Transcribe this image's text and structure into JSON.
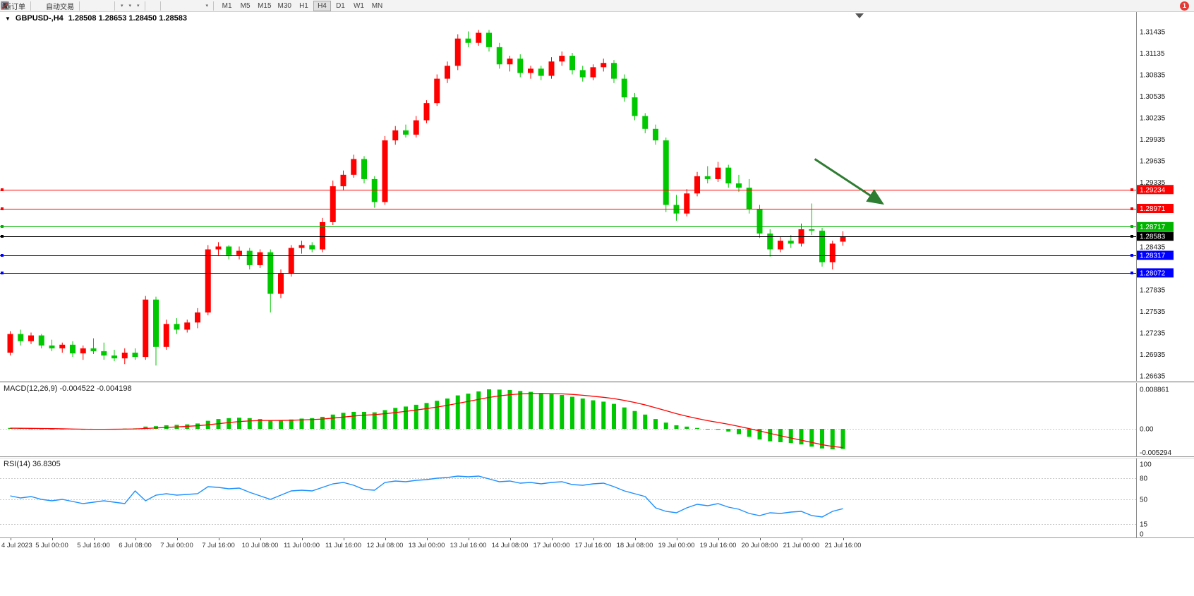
{
  "toolbar": {
    "new_order_label": "新订单",
    "auto_trading_label": "自动交易",
    "text_tool_glyph": "A",
    "label_tool_glyph": "T",
    "timeframes": [
      "M1",
      "M5",
      "M15",
      "M30",
      "H1",
      "H4",
      "D1",
      "W1",
      "MN"
    ],
    "active_timeframe": "H4",
    "notification_badge": "1"
  },
  "chart": {
    "symbol_period": "GBPUSD-,H4",
    "ohlc_display": "1.28508 1.28653 1.28450 1.28583"
  },
  "chart_data": [
    {
      "type": "candlestick",
      "title": "GBPUSD-,H4",
      "open": 1.28508,
      "high": 1.28653,
      "low": 1.2845,
      "close": 1.28583,
      "up_color": "#ff0000",
      "down_color": "#00c800",
      "price_axis": {
        "labels": [
          "1.31435",
          "1.31135",
          "1.30835",
          "1.30535",
          "1.30235",
          "1.29935",
          "1.29635",
          "1.29335",
          "1.29035",
          "1.28735",
          "1.28435",
          "1.28135",
          "1.27835",
          "1.27535",
          "1.27235",
          "1.26935",
          "1.26635"
        ]
      },
      "time_labels": [
        "4 Jul 2023",
        "5 Jul 00:00",
        "5 Jul 16:00",
        "6 Jul 08:00",
        "7 Jul 00:00",
        "7 Jul 16:00",
        "10 Jul 08:00",
        "11 Jul 00:00",
        "11 Jul 16:00",
        "12 Jul 08:00",
        "13 Jul 00:00",
        "13 Jul 16:00",
        "14 Jul 08:00",
        "17 Jul 00:00",
        "17 Jul 16:00",
        "18 Jul 08:00",
        "19 Jul 00:00",
        "19 Jul 16:00",
        "20 Jul 08:00",
        "21 Jul 00:00",
        "21 Jul 16:00"
      ],
      "candles": [
        [
          1.2696,
          1.2726,
          1.2692,
          1.2722
        ],
        [
          1.2722,
          1.2728,
          1.2706,
          1.2712
        ],
        [
          1.2712,
          1.2724,
          1.2708,
          1.272
        ],
        [
          1.272,
          1.2722,
          1.2702,
          1.2706
        ],
        [
          1.2706,
          1.2714,
          1.2698,
          1.2702
        ],
        [
          1.2702,
          1.271,
          1.2696,
          1.2707
        ],
        [
          1.2707,
          1.2712,
          1.269,
          1.2695
        ],
        [
          1.2695,
          1.2706,
          1.2686,
          1.2702
        ],
        [
          1.2702,
          1.2716,
          1.2694,
          1.2698
        ],
        [
          1.2698,
          1.271,
          1.2686,
          1.2692
        ],
        [
          1.2692,
          1.27,
          1.2684,
          1.2688
        ],
        [
          1.2688,
          1.2702,
          1.268,
          1.2696
        ],
        [
          1.2696,
          1.2702,
          1.2686,
          1.269
        ],
        [
          1.269,
          1.2775,
          1.2686,
          1.277
        ],
        [
          1.277,
          1.2774,
          1.2678,
          1.2704
        ],
        [
          1.2704,
          1.2742,
          1.27,
          1.2736
        ],
        [
          1.2736,
          1.2744,
          1.2722,
          1.2728
        ],
        [
          1.2728,
          1.2742,
          1.2724,
          1.2738
        ],
        [
          1.2738,
          1.2758,
          1.273,
          1.2752
        ],
        [
          1.2752,
          1.2846,
          1.2748,
          1.284
        ],
        [
          1.284,
          1.285,
          1.2832,
          1.2844
        ],
        [
          1.2844,
          1.2846,
          1.2826,
          1.2832
        ],
        [
          1.2832,
          1.2844,
          1.2826,
          1.2838
        ],
        [
          1.2838,
          1.2842,
          1.2812,
          1.2818
        ],
        [
          1.2818,
          1.284,
          1.2814,
          1.2836
        ],
        [
          1.2836,
          1.284,
          1.2752,
          1.2778
        ],
        [
          1.2778,
          1.2812,
          1.2772,
          1.2806
        ],
        [
          1.2806,
          1.2846,
          1.2802,
          1.2842
        ],
        [
          1.2842,
          1.2852,
          1.2834,
          1.2846
        ],
        [
          1.2846,
          1.285,
          1.2836,
          1.284
        ],
        [
          1.284,
          1.2884,
          1.2836,
          1.2878
        ],
        [
          1.2878,
          1.2936,
          1.2874,
          1.2928
        ],
        [
          1.2928,
          1.295,
          1.2922,
          1.2944
        ],
        [
          1.2944,
          1.2972,
          1.294,
          1.2966
        ],
        [
          1.2966,
          1.297,
          1.2932,
          1.2938
        ],
        [
          1.2938,
          1.2942,
          1.2898,
          1.2906
        ],
        [
          1.2906,
          1.2998,
          1.2902,
          1.2992
        ],
        [
          1.2992,
          1.3012,
          1.2986,
          1.3006
        ],
        [
          1.3006,
          1.3014,
          1.2996,
          1.3
        ],
        [
          1.3,
          1.3026,
          1.2996,
          1.302
        ],
        [
          1.302,
          1.3048,
          1.3016,
          1.3044
        ],
        [
          1.3044,
          1.3084,
          1.304,
          1.3078
        ],
        [
          1.3078,
          1.3102,
          1.3072,
          1.3096
        ],
        [
          1.3096,
          1.314,
          1.309,
          1.3134
        ],
        [
          1.3134,
          1.3144,
          1.3122,
          1.3128
        ],
        [
          1.3128,
          1.3146,
          1.3124,
          1.3142
        ],
        [
          1.3142,
          1.3146,
          1.3116,
          1.3122
        ],
        [
          1.3122,
          1.3128,
          1.3092,
          1.3098
        ],
        [
          1.3098,
          1.311,
          1.3088,
          1.3106
        ],
        [
          1.3106,
          1.3112,
          1.308,
          1.3086
        ],
        [
          1.3086,
          1.3096,
          1.3078,
          1.3092
        ],
        [
          1.3092,
          1.3096,
          1.3076,
          1.3082
        ],
        [
          1.3082,
          1.3108,
          1.3078,
          1.3102
        ],
        [
          1.3102,
          1.3116,
          1.3096,
          1.311
        ],
        [
          1.311,
          1.3114,
          1.3084,
          1.309
        ],
        [
          1.309,
          1.3096,
          1.3074,
          1.308
        ],
        [
          1.308,
          1.3098,
          1.3076,
          1.3094
        ],
        [
          1.3094,
          1.3106,
          1.3088,
          1.31
        ],
        [
          1.31,
          1.3104,
          1.3072,
          1.3078
        ],
        [
          1.3078,
          1.3084,
          1.3046,
          1.3052
        ],
        [
          1.3052,
          1.3058,
          1.302,
          1.3026
        ],
        [
          1.3026,
          1.303,
          1.3002,
          1.3008
        ],
        [
          1.3008,
          1.3014,
          1.2986,
          1.2992
        ],
        [
          1.2992,
          1.2996,
          1.2892,
          1.2902
        ],
        [
          1.2902,
          1.2916,
          1.288,
          1.289
        ],
        [
          1.289,
          1.2924,
          1.2886,
          1.2918
        ],
        [
          1.2918,
          1.2948,
          1.2914,
          1.2942
        ],
        [
          1.2942,
          1.2956,
          1.2932,
          1.2938
        ],
        [
          1.2938,
          1.2962,
          1.2934,
          1.2954
        ],
        [
          1.2954,
          1.2958,
          1.2926,
          1.2932
        ],
        [
          1.2932,
          1.2944,
          1.292,
          1.2926
        ],
        [
          1.2926,
          1.2938,
          1.289,
          1.2896
        ],
        [
          1.2896,
          1.2902,
          1.2856,
          1.2862
        ],
        [
          1.2862,
          1.2868,
          1.283,
          1.284
        ],
        [
          1.284,
          1.2858,
          1.2836,
          1.2852
        ],
        [
          1.2852,
          1.286,
          1.2842,
          1.2848
        ],
        [
          1.2848,
          1.2876,
          1.2844,
          1.2868
        ],
        [
          1.2868,
          1.2904,
          1.286,
          1.2866
        ],
        [
          1.2866,
          1.287,
          1.2816,
          1.2822
        ],
        [
          1.2822,
          1.2852,
          1.2812,
          1.2848
        ],
        [
          1.28508,
          1.28653,
          1.2845,
          1.28583
        ]
      ],
      "hlines": [
        {
          "label": "1.29234",
          "price": 1.29234,
          "color": "#ff0000",
          "name": "resistance-line-1"
        },
        {
          "label": "1.28971",
          "price": 1.28971,
          "color": "#ff0000",
          "name": "resistance-line-2"
        },
        {
          "label": "1.28717",
          "price": 1.28717,
          "color": "#00b400",
          "name": "pivot-line"
        },
        {
          "label": "1.28583",
          "price": 1.28583,
          "color": "#000000",
          "name": "current-price-line"
        },
        {
          "label": "1.28317",
          "price": 1.28317,
          "color": "#0000ff",
          "name": "support-line-1"
        },
        {
          "label": "1.28072",
          "price": 1.28072,
          "color": "#0000ff",
          "name": "support-line-2"
        }
      ],
      "arrow": {
        "from_bar": 77.6,
        "from_price": 1.2966,
        "to_bar": 84.1,
        "to_price": 1.2904,
        "color": "#2e7d32"
      }
    },
    {
      "type": "macd",
      "label": "MACD(12,26,9)",
      "main_value": "-0.004522",
      "signal_value": "-0.004198",
      "axis_labels": [
        "0.008861",
        "0.00",
        "-0.005294"
      ],
      "ymax": 0.008861,
      "ymin": -0.005294,
      "histogram_color": "#00c800",
      "signal_color": "#ff0000",
      "main": [
        0.0002,
        0.00015,
        0.0001,
        5e-05,
        0,
        -0.0001,
        -0.00015,
        -0.0002,
        -0.00015,
        -0.0001,
        -5e-05,
        5e-05,
        0.0001,
        0.0005,
        0.0006,
        0.0008,
        0.0009,
        0.001,
        0.0012,
        0.0018,
        0.0022,
        0.0024,
        0.0025,
        0.0024,
        0.0022,
        0.0019,
        0.0019,
        0.0021,
        0.0023,
        0.0024,
        0.0027,
        0.0032,
        0.0036,
        0.0038,
        0.0038,
        0.0037,
        0.0042,
        0.0047,
        0.005,
        0.0054,
        0.0058,
        0.0063,
        0.0068,
        0.0075,
        0.0079,
        0.0084,
        0.008861,
        0.0088,
        0.0087,
        0.0085,
        0.0083,
        0.008,
        0.0078,
        0.0076,
        0.0072,
        0.0068,
        0.0064,
        0.0061,
        0.0056,
        0.0048,
        0.004,
        0.0032,
        0.0022,
        0.0014,
        0.0008,
        0.0005,
        0.0002,
        0,
        -0.0002,
        -0.0006,
        -0.0012,
        -0.0018,
        -0.0024,
        -0.0028,
        -0.003,
        -0.0032,
        -0.0035,
        -0.004,
        -0.0044,
        -0.0046,
        -0.004522
      ],
      "signal": [
        0.00015,
        0.00013,
        0.00011,
        8e-05,
        5e-05,
        1e-05,
        -4e-05,
        -8e-05,
        -0.0001,
        -0.0001,
        -9e-05,
        -6e-05,
        -2e-05,
        8e-05,
        0.0002,
        0.00032,
        0.00044,
        0.00056,
        0.0007,
        0.0009,
        0.00116,
        0.00141,
        0.00163,
        0.00178,
        0.00186,
        0.00188,
        0.00189,
        0.00193,
        0.002,
        0.00208,
        0.0022,
        0.0024,
        0.00264,
        0.00287,
        0.00306,
        0.00319,
        0.00339,
        0.00365,
        0.00392,
        0.00422,
        0.00454,
        0.00489,
        0.00527,
        0.00572,
        0.00615,
        0.0066,
        0.00705,
        0.0074,
        0.00766,
        0.00783,
        0.00792,
        0.00794,
        0.00791,
        0.00785,
        0.00772,
        0.00754,
        0.00731,
        0.00707,
        0.00678,
        0.00638,
        0.00591,
        0.00537,
        0.00473,
        0.00407,
        0.00341,
        0.00283,
        0.00231,
        0.00184,
        0.00144,
        0.00103,
        0.00055,
        5e-05,
        -0.00048,
        -0.00102,
        -0.00155,
        -0.00205,
        -0.00255,
        -0.00305,
        -0.00355,
        -0.00395,
        -0.004198
      ]
    },
    {
      "type": "line",
      "label": "RSI(14)",
      "value": "36.8305",
      "axis_labels": [
        "100",
        "80",
        "50",
        "15",
        "0"
      ],
      "levels": [
        80,
        50,
        15
      ],
      "ymax": 100,
      "ymin": 0,
      "color": "#1e90ff",
      "values": [
        55,
        52,
        54,
        50,
        48,
        50,
        47,
        44,
        46,
        48,
        46,
        44,
        62,
        48,
        56,
        58,
        56,
        57,
        58,
        68,
        67,
        65,
        66,
        60,
        55,
        50,
        56,
        62,
        63,
        62,
        67,
        72,
        74,
        70,
        64,
        63,
        74,
        76,
        75,
        77,
        78,
        80,
        81,
        83,
        82,
        83,
        79,
        75,
        76,
        73,
        74,
        72,
        74,
        75,
        71,
        70,
        72,
        73,
        68,
        62,
        58,
        54,
        38,
        33,
        31,
        38,
        43,
        41,
        44,
        39,
        36,
        30,
        27,
        31,
        30,
        32,
        33,
        27,
        25,
        33,
        36.8
      ]
    }
  ]
}
